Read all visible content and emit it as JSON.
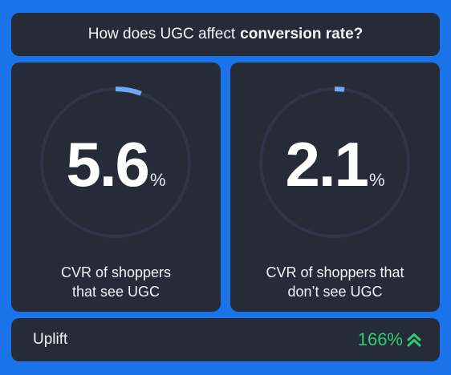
{
  "header": {
    "title_prefix": "How does UGC affect",
    "title_bold": "conversion rate?"
  },
  "stats": [
    {
      "value": "5.6",
      "unit": "%",
      "progress_pct": 5.6,
      "caption_line1": "CVR of shoppers",
      "caption_line2": "that see UGC"
    },
    {
      "value": "2.1",
      "unit": "%",
      "progress_pct": 2.1,
      "caption_line1": "CVR of shoppers that",
      "caption_line2": "don’t see UGC"
    }
  ],
  "uplift": {
    "label": "Uplift",
    "value": "166%",
    "icon": "double-chevron-up-icon"
  },
  "colors": {
    "background": "#1a73e8",
    "card": "#262b38",
    "ring_track": "#30354a",
    "ring_progress": "#6fa8f5",
    "uplift_green": "#2ecc71"
  }
}
